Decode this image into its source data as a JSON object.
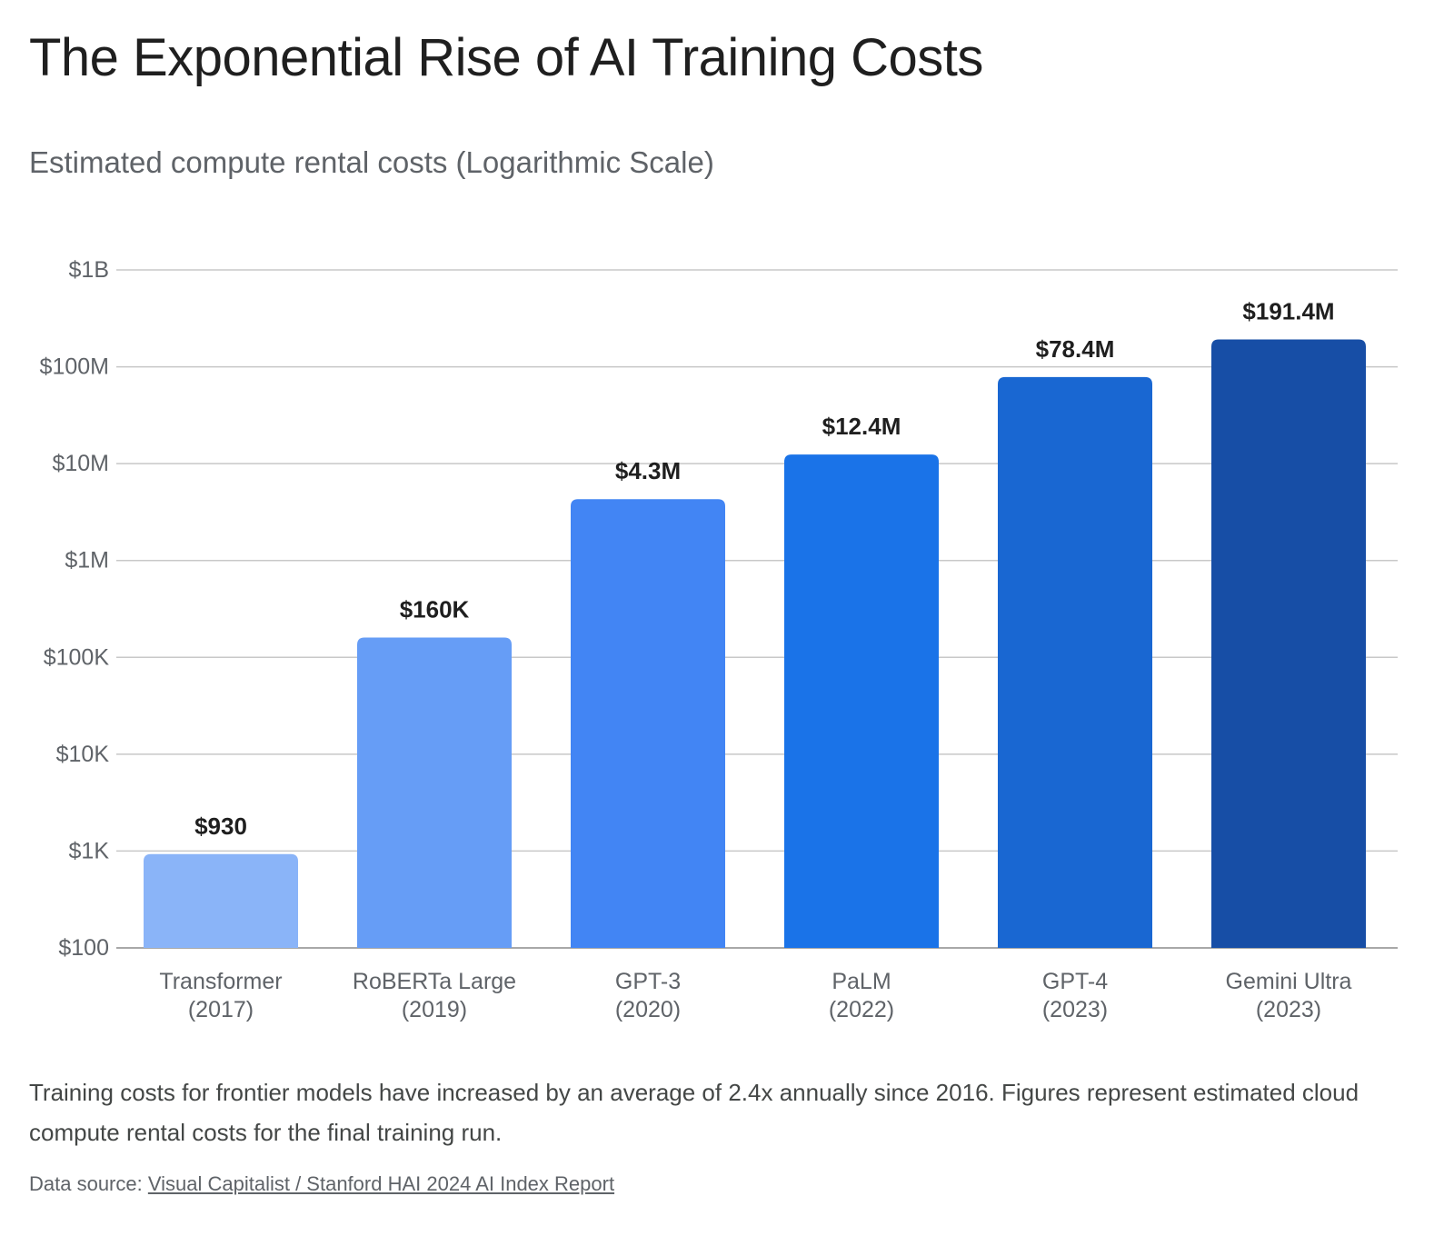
{
  "title": "The Exponential Rise of AI Training Costs",
  "subtitle": "Estimated compute rental costs (Logarithmic Scale)",
  "footnote": "Training costs for frontier models have increased by an average of 2.4x annually since 2016. Figures represent estimated cloud compute rental costs for the final training run.",
  "source": {
    "prefix": "Data source: ",
    "link_text": "Visual Capitalist / Stanford HAI 2024 AI Index Report"
  },
  "chart_data": {
    "type": "bar",
    "title": "The Exponential Rise of AI Training Costs",
    "subtitle": "Estimated compute rental costs (Logarithmic Scale)",
    "scale": "log",
    "ylim": [
      100,
      1000000000
    ],
    "grid": true,
    "yticks": [
      {
        "value": 100,
        "label": "$100"
      },
      {
        "value": 1000,
        "label": "$1K"
      },
      {
        "value": 10000,
        "label": "$10K"
      },
      {
        "value": 100000,
        "label": "$100K"
      },
      {
        "value": 1000000,
        "label": "$1M"
      },
      {
        "value": 10000000,
        "label": "$10M"
      },
      {
        "value": 100000000,
        "label": "$100M"
      },
      {
        "value": 1000000000,
        "label": "$1B"
      }
    ],
    "categories": [
      {
        "name": "Transformer",
        "year": "(2017)"
      },
      {
        "name": "RoBERTa Large",
        "year": "(2019)"
      },
      {
        "name": "GPT-3",
        "year": "(2020)"
      },
      {
        "name": "PaLM",
        "year": "(2022)"
      },
      {
        "name": "GPT-4",
        "year": "(2023)"
      },
      {
        "name": "Gemini Ultra",
        "year": "(2023)"
      }
    ],
    "values": [
      930,
      160000,
      4300000,
      12400000,
      78400000,
      191400000
    ],
    "value_labels": [
      "$930",
      "$160K",
      "$4.3M",
      "$12.4M",
      "$78.4M",
      "$191.4M"
    ],
    "colors": [
      "#8ab4f8",
      "#669df6",
      "#4285f4",
      "#1a73e8",
      "#1967d2",
      "#174ea6"
    ],
    "grid_color": "#c8c8c8",
    "baseline_color": "#a8a8a8"
  }
}
